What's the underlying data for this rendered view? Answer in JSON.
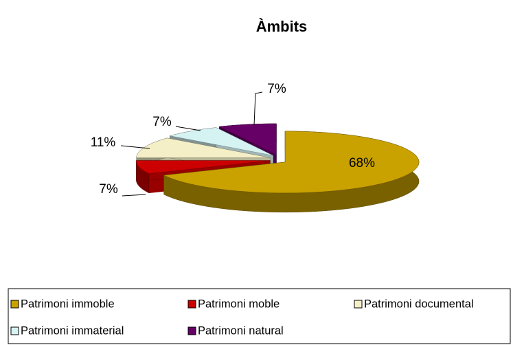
{
  "chart_data": {
    "type": "pie",
    "title": "Àmbits",
    "categories": [
      "Patrimoni immoble",
      "Patrimoni moble",
      "Patrimoni documental",
      "Patrimoni immaterial",
      "Patrimoni natural"
    ],
    "series": [
      {
        "name": "Àmbits",
        "colors": [
          "#c9a200",
          "#cc0000",
          "#f4efc6",
          "#d6f3f3",
          "#660066"
        ],
        "values": [
          68,
          7,
          11,
          7,
          7
        ],
        "value_labels": [
          "68%",
          "7%",
          "11%",
          "7%",
          "7%"
        ]
      }
    ],
    "legend": "bottom"
  }
}
